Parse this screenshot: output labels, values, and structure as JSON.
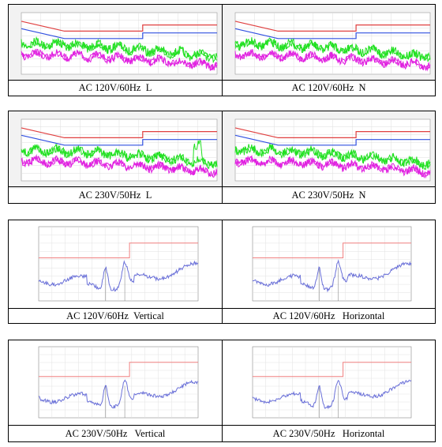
{
  "rows": [
    {
      "cells": [
        {
          "caption": "AC 120V/60Hz  L"
        },
        {
          "caption": "AC 120V/60Hz  N"
        }
      ]
    },
    {
      "cells": [
        {
          "caption": "AC 230V/50Hz  L"
        },
        {
          "caption": "AC 230V/50Hz  N"
        }
      ]
    },
    {
      "cells": [
        {
          "caption": "AC 120V/60Hz  Vertical"
        },
        {
          "caption": "AC 120V/60Hz   Horizontal"
        }
      ]
    },
    {
      "cells": [
        {
          "caption": "AC 230V/50Hz   Vertical"
        },
        {
          "caption": "AC 230V/50Hz   Horizontal"
        }
      ]
    }
  ]
}
